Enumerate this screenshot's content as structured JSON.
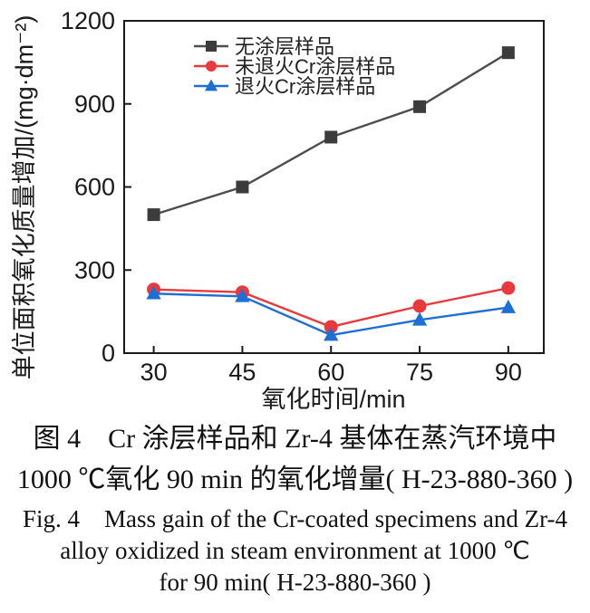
{
  "chart_data": {
    "type": "line",
    "x": [
      30,
      45,
      60,
      75,
      90
    ],
    "x_ticks": [
      "30",
      "45",
      "60",
      "75",
      "90"
    ],
    "y_ticks": [
      "0",
      "300",
      "600",
      "900",
      "1200"
    ],
    "y_tick_values": [
      0,
      300,
      600,
      900,
      1200
    ],
    "xlabel": "氧化时间/min",
    "ylabel": "单位面积氧化质量增加/(mg·dm⁻²)",
    "xlim": [
      25,
      96
    ],
    "ylim": [
      0,
      1200
    ],
    "grid": false,
    "legend_position": "top-left-inside",
    "series": [
      {
        "name": "无涂层样品",
        "marker": "square",
        "line_color": "#4d4d4d",
        "marker_color": "#3c3c3c",
        "values": [
          500,
          600,
          780,
          890,
          1085
        ]
      },
      {
        "name": "未退火Cr涂层样品",
        "marker": "circle",
        "line_color": "#e8393d",
        "marker_color": "#e8393d",
        "values": [
          230,
          220,
          95,
          170,
          235
        ]
      },
      {
        "name": "退火Cr涂层样品",
        "marker": "triangle",
        "line_color": "#1d6fd5",
        "marker_color": "#1d6fd5",
        "values": [
          215,
          205,
          65,
          120,
          165
        ]
      }
    ],
    "axis_color": "#1a1a1a",
    "tick_label_color": "#1a1a1a"
  },
  "caption": {
    "zh_line1": "图 4　Cr 涂层样品和 Zr-4 基体在蒸汽环境中",
    "zh_line2": "1000 ℃氧化 90 min 的氧化增量( H-23-880-360 )",
    "en_line1": "Fig. 4　Mass gain of the Cr-coated specimens and Zr-4",
    "en_line2": "alloy oxidized in steam environment at 1000 ℃",
    "en_line3": "for 90 min( H-23-880-360 )"
  }
}
